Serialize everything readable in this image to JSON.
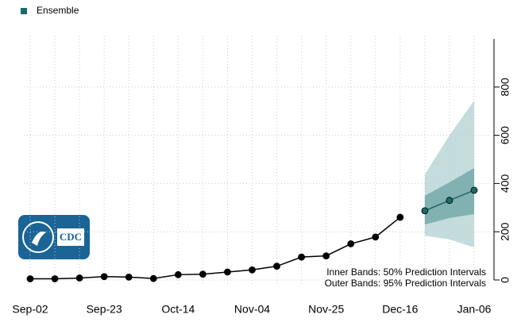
{
  "chart_data": {
    "type": "forecast",
    "categories": [
      "Sep-02",
      null,
      null,
      "Sep-23",
      null,
      null,
      "Oct-14",
      null,
      null,
      "Nov-04",
      null,
      null,
      "Nov-25",
      null,
      null,
      "Dec-16",
      null,
      null,
      "Jan-06"
    ],
    "series": [
      {
        "color": "#000000",
        "values": [
          5,
          5,
          8,
          14,
          12,
          6,
          22,
          24,
          33,
          42,
          57,
          95,
          100,
          150,
          178,
          260,
          null,
          null,
          null
        ]
      },
      {
        "name": "Ensemble",
        "color": "#1b6b6b",
        "values": [
          null,
          null,
          null,
          null,
          null,
          null,
          null,
          null,
          null,
          null,
          null,
          null,
          null,
          null,
          null,
          null,
          287,
          330,
          372
        ]
      }
    ],
    "intervals": [
      {
        "color": "#b7d3d3",
        "lower": [
          null,
          null,
          null,
          null,
          null,
          null,
          null,
          null,
          null,
          null,
          null,
          null,
          null,
          null,
          null,
          null,
          184,
          168,
          135
        ],
        "upper": [
          null,
          null,
          null,
          null,
          null,
          null,
          null,
          null,
          null,
          null,
          null,
          null,
          null,
          null,
          null,
          null,
          438,
          600,
          744
        ]
      },
      {
        "color": "#6fa6a6",
        "lower": [
          null,
          null,
          null,
          null,
          null,
          null,
          null,
          null,
          null,
          null,
          null,
          null,
          null,
          null,
          null,
          null,
          230,
          257,
          273
        ],
        "upper": [
          null,
          null,
          null,
          null,
          null,
          null,
          null,
          null,
          null,
          null,
          null,
          null,
          null,
          null,
          null,
          null,
          349,
          405,
          464
        ]
      }
    ],
    "annotations": [
      "Inner Bands: 50% Prediction Intervals",
      "Outer Bands: 95% Prediction Intervals"
    ],
    "logo": "CDC",
    "ylim": [
      0,
      1000
    ],
    "yticks": [
      0,
      200,
      400,
      600,
      800
    ],
    "grid": true
  }
}
